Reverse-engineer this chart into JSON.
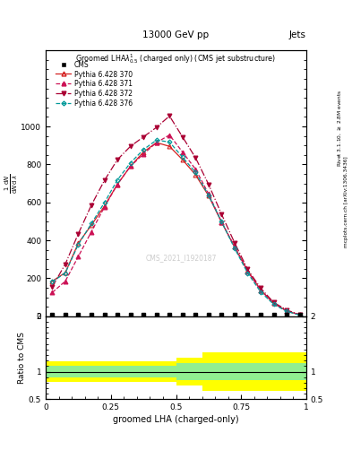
{
  "title_top": "13000 GeV pp",
  "title_right": "Jets",
  "plot_title": "Groomed LHA$\\lambda^1_{0.5}$ (charged only) (CMS jet substructure)",
  "xlabel": "groomed LHA (charged-only)",
  "ylabel_ratio": "Ratio to CMS",
  "right_label_top": "Rivet 3.1.10, $\\geq$ 2.8M events",
  "right_label_bot": "mcplots.cern.ch [arXiv:1306.3436]",
  "watermark": "CMS_2021_I1920187",
  "x_values": [
    0.025,
    0.075,
    0.125,
    0.175,
    0.225,
    0.275,
    0.325,
    0.375,
    0.425,
    0.475,
    0.525,
    0.575,
    0.625,
    0.675,
    0.725,
    0.775,
    0.825,
    0.875,
    0.925,
    0.975
  ],
  "py370_y": [
    185,
    230,
    385,
    480,
    580,
    695,
    790,
    865,
    915,
    895,
    825,
    745,
    635,
    495,
    365,
    240,
    138,
    68,
    28,
    8
  ],
  "py371_y": [
    125,
    185,
    315,
    445,
    575,
    695,
    790,
    855,
    915,
    955,
    865,
    775,
    645,
    497,
    367,
    237,
    138,
    68,
    28,
    8
  ],
  "py372_y": [
    155,
    275,
    435,
    585,
    715,
    825,
    895,
    945,
    995,
    1055,
    945,
    835,
    695,
    537,
    387,
    247,
    148,
    73,
    33,
    8
  ],
  "py376_y": [
    182,
    228,
    378,
    488,
    598,
    718,
    808,
    878,
    928,
    918,
    838,
    758,
    638,
    498,
    358,
    228,
    128,
    63,
    26,
    6
  ],
  "ylim_main": [
    0,
    1400
  ],
  "yticks_main": [
    0,
    200,
    400,
    600,
    800,
    1000
  ],
  "ylim_ratio": [
    0.5,
    2.0
  ],
  "yticks_ratio_left": [
    2.0,
    1.0,
    0.5
  ],
  "yticks_ratio_right": [
    2.0,
    1.0,
    0.5
  ],
  "xlim": [
    0.0,
    1.0
  ],
  "color_py370": "#d42020",
  "color_py371": "#cc1155",
  "color_py372": "#aa0033",
  "color_py376": "#009999",
  "ratio_bins_x": [
    0.0,
    0.05,
    0.1,
    0.15,
    0.2,
    0.25,
    0.3,
    0.35,
    0.4,
    0.45,
    0.5,
    0.55,
    0.6,
    0.65,
    0.7,
    0.75,
    0.8,
    0.85,
    0.9,
    0.95,
    1.0
  ],
  "ratio_yellow_lo": [
    0.82,
    0.82,
    0.82,
    0.82,
    0.82,
    0.82,
    0.82,
    0.82,
    0.82,
    0.82,
    0.75,
    0.75,
    0.65,
    0.65,
    0.65,
    0.65,
    0.65,
    0.65,
    0.65,
    0.65
  ],
  "ratio_yellow_hi": [
    1.18,
    1.18,
    1.18,
    1.18,
    1.18,
    1.18,
    1.18,
    1.18,
    1.18,
    1.18,
    1.25,
    1.25,
    1.35,
    1.35,
    1.35,
    1.35,
    1.35,
    1.35,
    1.35,
    1.35
  ],
  "ratio_green_lo": [
    0.9,
    0.9,
    0.9,
    0.9,
    0.9,
    0.9,
    0.9,
    0.9,
    0.9,
    0.9,
    0.85,
    0.85,
    0.85,
    0.85,
    0.85,
    0.85,
    0.85,
    0.85,
    0.85,
    0.85
  ],
  "ratio_green_hi": [
    1.1,
    1.1,
    1.1,
    1.1,
    1.1,
    1.1,
    1.1,
    1.1,
    1.1,
    1.1,
    1.15,
    1.15,
    1.15,
    1.15,
    1.15,
    1.15,
    1.15,
    1.15,
    1.15,
    1.15
  ]
}
